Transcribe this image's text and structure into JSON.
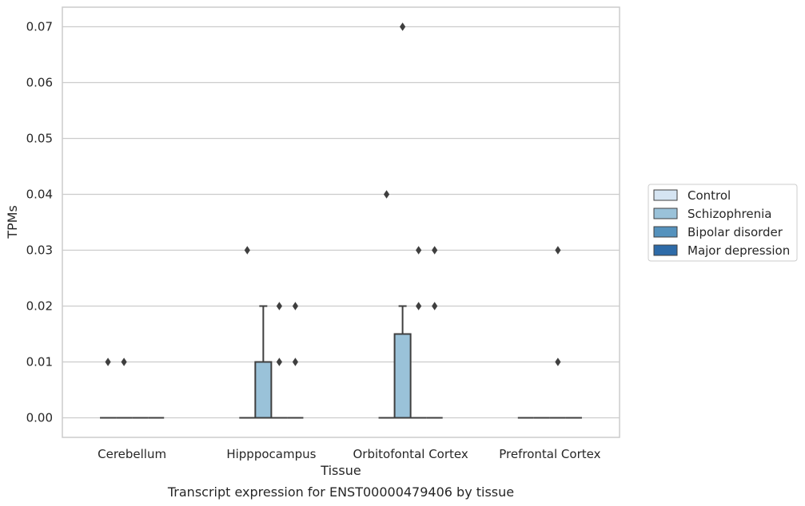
{
  "chart_data": {
    "type": "box",
    "title": "",
    "caption": "Transcript expression for ENST00000479406 by tissue",
    "xlabel": "Tissue",
    "ylabel": "TPMs",
    "ylim": [
      -0.0035,
      0.0735
    ],
    "yticks": [
      "0.00",
      "0.01",
      "0.02",
      "0.03",
      "0.04",
      "0.05",
      "0.06",
      "0.07"
    ],
    "ytick_values": [
      0,
      0.01,
      0.02,
      0.03,
      0.04,
      0.05,
      0.06,
      0.07
    ],
    "grid": true,
    "legend_position": "right",
    "categories": [
      "Cerebellum",
      "Hipppocampus",
      "Orbitofontal Cortex",
      "Prefrontal Cortex"
    ],
    "series": [
      {
        "name": "Control",
        "color": "#d5e4f2",
        "boxes": [
          {
            "q1": 0,
            "median": 0,
            "q3": 0,
            "whisker_low": 0,
            "whisker_high": 0,
            "outliers": [
              0.01
            ]
          },
          {
            "q1": 0,
            "median": 0,
            "q3": 0,
            "whisker_low": 0,
            "whisker_high": 0,
            "outliers": [
              0.03
            ]
          },
          {
            "q1": 0,
            "median": 0,
            "q3": 0,
            "whisker_low": 0,
            "whisker_high": 0,
            "outliers": [
              0.04
            ]
          },
          {
            "q1": 0,
            "median": 0,
            "q3": 0,
            "whisker_low": 0,
            "whisker_high": 0,
            "outliers": []
          }
        ]
      },
      {
        "name": "Schizophrenia",
        "color": "#9ac2d9",
        "boxes": [
          {
            "q1": 0,
            "median": 0,
            "q3": 0,
            "whisker_low": 0,
            "whisker_high": 0,
            "outliers": [
              0.01
            ]
          },
          {
            "q1": 0,
            "median": 0,
            "q3": 0.01,
            "whisker_low": 0,
            "whisker_high": 0.02,
            "outliers": []
          },
          {
            "q1": 0,
            "median": 0,
            "q3": 0.015,
            "whisker_low": 0,
            "whisker_high": 0.02,
            "outliers": [
              0.07
            ]
          },
          {
            "q1": 0,
            "median": 0,
            "q3": 0,
            "whisker_low": 0,
            "whisker_high": 0,
            "outliers": []
          }
        ]
      },
      {
        "name": "Bipolar disorder",
        "color": "#5592bd",
        "boxes": [
          {
            "q1": 0,
            "median": 0,
            "q3": 0,
            "whisker_low": 0,
            "whisker_high": 0,
            "outliers": []
          },
          {
            "q1": 0,
            "median": 0,
            "q3": 0,
            "whisker_low": 0,
            "whisker_high": 0,
            "outliers": [
              0.01,
              0.02
            ]
          },
          {
            "q1": 0,
            "median": 0,
            "q3": 0,
            "whisker_low": 0,
            "whisker_high": 0,
            "outliers": [
              0.02,
              0.03
            ]
          },
          {
            "q1": 0,
            "median": 0,
            "q3": 0,
            "whisker_low": 0,
            "whisker_high": 0,
            "outliers": [
              0.01,
              0.03
            ]
          }
        ]
      },
      {
        "name": "Major depression",
        "color": "#2e6ba8",
        "boxes": [
          {
            "q1": 0,
            "median": 0,
            "q3": 0,
            "whisker_low": 0,
            "whisker_high": 0,
            "outliers": []
          },
          {
            "q1": 0,
            "median": 0,
            "q3": 0,
            "whisker_low": 0,
            "whisker_high": 0,
            "outliers": [
              0.01,
              0.02
            ]
          },
          {
            "q1": 0,
            "median": 0,
            "q3": 0,
            "whisker_low": 0,
            "whisker_high": 0,
            "outliers": [
              0.02,
              0.03
            ]
          },
          {
            "q1": 0,
            "median": 0,
            "q3": 0,
            "whisker_low": 0,
            "whisker_high": 0,
            "outliers": []
          }
        ]
      }
    ],
    "colors": {
      "grid": "#cccccc",
      "axes_frame": "#cccccc",
      "box_edge": "#3f3f3f",
      "outlier": "#3f3f3f"
    }
  }
}
